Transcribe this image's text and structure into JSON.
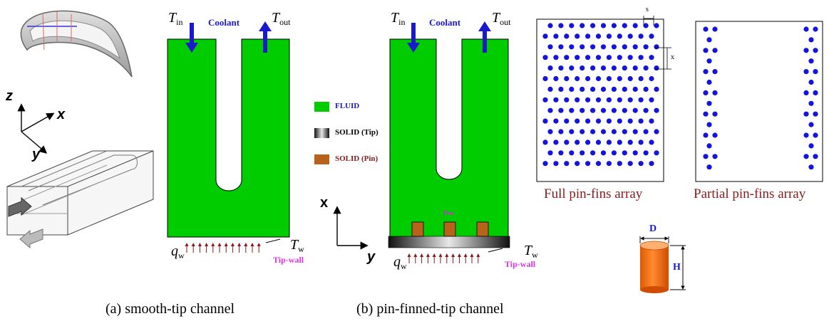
{
  "captions": {
    "a": "(a) smooth-tip channel",
    "b": "(b) pin-finned-tip channel"
  },
  "legend": {
    "fluid": "FLUID",
    "solid_tip": "SOLID (Tip)",
    "solid_pin": "SOLID (Pin)"
  },
  "labels": {
    "coolant": "Coolant",
    "tip_wall": "Tip-wall",
    "pins": "Pins",
    "t_symbol": "T",
    "t_in_sub": "in",
    "t_out_sub": "out",
    "t_w_sub": "w",
    "q_symbol": "q",
    "q_sub": "w"
  },
  "axes": {
    "z": "z",
    "x": "x",
    "y": "y"
  },
  "arrays": {
    "full": "Full pin-fins array",
    "partial": "Partial pin-fins array",
    "s": "s",
    "x": "x"
  },
  "pin_dims": {
    "d": "D",
    "h": "H"
  },
  "colors": {
    "fluid": "#00cc00",
    "pin": "#b8621a",
    "dot": "#1414dc",
    "coolant_arrow": "#1a1acc",
    "heat_arrow": "#8b1a1a",
    "pin_cylinder": "#ff6a10"
  }
}
